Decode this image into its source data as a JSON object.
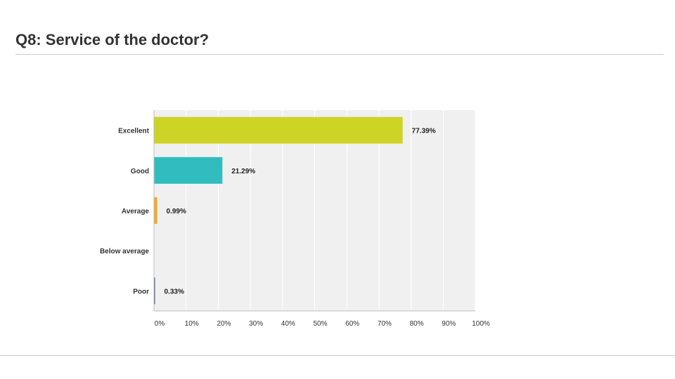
{
  "slide": {
    "title": "Q8:  Service of the doctor?"
  },
  "chart_data": {
    "type": "bar",
    "orientation": "horizontal",
    "categories": [
      "Excellent",
      "Good",
      "Average",
      "Below average",
      "Poor"
    ],
    "values": [
      77.39,
      21.29,
      0.99,
      0,
      0.33
    ],
    "value_labels": [
      "77.39%",
      "21.29%",
      "0.99%",
      "",
      "0.33%"
    ],
    "colors": [
      "#cdd425",
      "#31bdbf",
      "#f1a92b",
      "#999999",
      "#4a5d7a"
    ],
    "xlim": [
      0,
      100
    ],
    "xticks": [
      "0%",
      "10%",
      "20%",
      "30%",
      "40%",
      "50%",
      "60%",
      "70%",
      "80%",
      "90%",
      "100%"
    ],
    "grid": true,
    "plot_background": "#f0f0f0",
    "title": "",
    "xlabel": "",
    "ylabel": ""
  }
}
